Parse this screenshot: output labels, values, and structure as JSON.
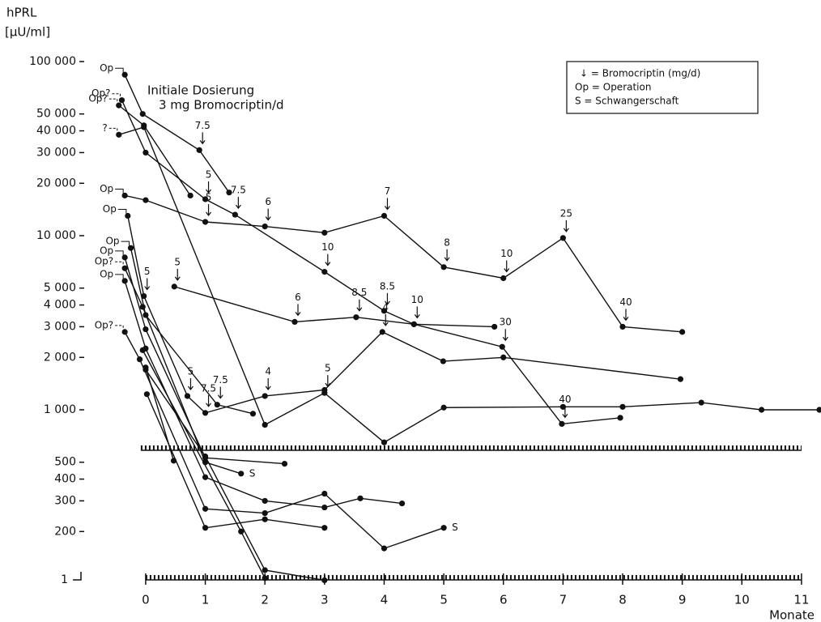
{
  "chart_data": {
    "type": "line",
    "y_label": "hPRL",
    "y_unit": "[µU/ml]",
    "x_label": "Monate",
    "annotation": [
      "Initiale Dosierung",
      "3 mg Bromocriptin/d"
    ],
    "legend_notes": [
      "↓ = Bromocriptin (mg/d)",
      "Op = Operation",
      "S = Schwangerschaft"
    ],
    "log_scale": true,
    "color": "#111111",
    "xlim": [
      -0.8,
      11.3
    ],
    "xticks": [
      0,
      1,
      2,
      3,
      4,
      5,
      6,
      7,
      8,
      9,
      10,
      11
    ],
    "ylim": [
      100,
      100000
    ],
    "yticks": [
      {
        "value": 100000,
        "label": "100 000"
      },
      {
        "value": 50000,
        "label": "50 000"
      },
      {
        "value": 40000,
        "label": "40 000"
      },
      {
        "value": 30000,
        "label": "30 000"
      },
      {
        "value": 20000,
        "label": "20 000"
      },
      {
        "value": 10000,
        "label": "10 000"
      },
      {
        "value": 5000,
        "label": "5 000"
      },
      {
        "value": 4000,
        "label": "4 000"
      },
      {
        "value": 3000,
        "label": "3 000"
      },
      {
        "value": 2000,
        "label": "2 000"
      },
      {
        "value": 1000,
        "label": "1 000"
      },
      500,
      400,
      300,
      200
    ],
    "axis_break_label": "1",
    "reference_value": 585,
    "series": [
      {
        "start": "Op",
        "x": [
          -0.35,
          -0.05,
          0.9,
          1.4
        ],
        "values": [
          84000,
          50000,
          31000,
          17700
        ],
        "doses": [
          null,
          null,
          7.5,
          null
        ]
      },
      {
        "start": "Op?",
        "x": [
          -0.4,
          0,
          1,
          1.5,
          3,
          4,
          4.5,
          5.85
        ],
        "values": [
          60000,
          30000,
          16200,
          13200,
          6200,
          3700,
          3100,
          3000
        ],
        "doses": [
          null,
          null,
          5,
          7.5,
          10,
          8.5,
          10,
          null
        ]
      },
      {
        "start": "Op",
        "x": [
          -0.35,
          0,
          1,
          2,
          3,
          4,
          5,
          6,
          7,
          8,
          9
        ],
        "values": [
          17000,
          16000,
          12000,
          11300,
          10400,
          13000,
          6600,
          5700,
          9700,
          3000,
          2800
        ],
        "doses": [
          null,
          null,
          5,
          6,
          null,
          7,
          8,
          10,
          25,
          40,
          null
        ]
      },
      {
        "start": "Op?",
        "x": [
          -0.45,
          -0.03,
          0.75
        ],
        "values": [
          56000,
          43000,
          17000
        ],
        "doses": [
          null,
          null,
          null
        ]
      },
      {
        "start": "?",
        "x": [
          -0.45,
          -0.03,
          2,
          3,
          4,
          5,
          7,
          8,
          9.32,
          10.33,
          11.3
        ],
        "values": [
          38000,
          42000,
          820,
          1250,
          650,
          1030,
          1040,
          1040,
          1100,
          1000,
          1000
        ],
        "doses": [
          null,
          null,
          null,
          5,
          null,
          null,
          null,
          null,
          null,
          null,
          null
        ]
      },
      {
        "x": [
          0.48,
          2.5,
          3.53,
          4.5,
          5.98,
          6.98,
          7.96
        ],
        "values": [
          5100,
          3200,
          3400,
          3100,
          2300,
          830,
          900
        ],
        "doses": [
          5,
          6,
          8.5,
          null,
          30,
          40,
          null
        ]
      },
      {
        "start": "Op",
        "x": [
          -0.3,
          -0.03,
          0.7,
          1,
          2,
          3,
          3.97,
          4.99,
          6,
          8.97
        ],
        "values": [
          13000,
          4500,
          1200,
          960,
          1200,
          1300,
          2800,
          1900,
          2000,
          1500
        ],
        "doses": [
          null,
          5,
          5,
          7.5,
          4,
          null,
          4,
          null,
          null,
          null
        ]
      },
      {
        "start": "Op",
        "x": [
          -0.25,
          0,
          1.2,
          1.8
        ],
        "values": [
          8500,
          3500,
          1070,
          950
        ],
        "doses": [
          null,
          null,
          7.5,
          null
        ]
      },
      {
        "start": "Op",
        "x": [
          -0.35,
          0,
          1,
          2.33
        ],
        "values": [
          7500,
          2900,
          530,
          490
        ],
        "doses": [
          null,
          null,
          null,
          null
        ]
      },
      {
        "start": "Op?",
        "end": "S",
        "x": [
          -0.35,
          -0.05,
          1,
          1.6
        ],
        "values": [
          6500,
          3900,
          500,
          430
        ],
        "doses": [
          null,
          null,
          null,
          null
        ]
      },
      {
        "start": "Op",
        "x": [
          -0.35,
          0,
          1,
          2,
          3,
          3.6,
          4.3
        ],
        "values": [
          5500,
          2250,
          410,
          300,
          275,
          310,
          290
        ],
        "doses": [
          null,
          null,
          null,
          null,
          null,
          null,
          null
        ]
      },
      {
        "start": "Op?",
        "end": "S",
        "x": [
          -0.35,
          -0.1,
          1,
          2,
          3,
          4,
          5
        ],
        "values": [
          2800,
          1950,
          270,
          255,
          330,
          160,
          210
        ],
        "doses": [
          null,
          null,
          null,
          null,
          null,
          null,
          null
        ]
      },
      {
        "x": [
          0,
          0.47
        ],
        "values": [
          1750,
          510
        ],
        "doses": [
          null,
          null
        ]
      },
      {
        "x": [
          0.02,
          1,
          2,
          3
        ],
        "values": [
          1230,
          210,
          235,
          210
        ],
        "doses": [
          null,
          null,
          null,
          null
        ]
      },
      {
        "x": [
          0,
          1,
          2,
          3
        ],
        "values": [
          1700,
          540,
          120,
          105
        ],
        "doses": [
          null,
          null,
          null,
          null
        ]
      },
      {
        "x": [
          -0.05,
          1.6,
          2
        ],
        "values": [
          2200,
          200,
          108
        ],
        "doses": [
          null,
          null,
          null
        ]
      }
    ]
  }
}
